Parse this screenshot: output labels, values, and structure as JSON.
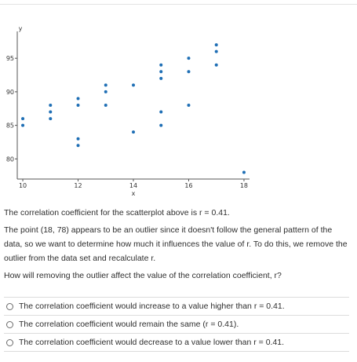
{
  "chart_data": {
    "type": "scatter",
    "xlabel": "x",
    "ylabel": "y",
    "xlim": [
      9.8,
      18.2
    ],
    "ylim": [
      77,
      99
    ],
    "xticks": [
      10,
      12,
      14,
      16,
      18
    ],
    "yticks": [
      80,
      85,
      90,
      95
    ],
    "point_color": "#1f6fb5",
    "points": [
      {
        "x": 10,
        "y": 86
      },
      {
        "x": 10,
        "y": 85
      },
      {
        "x": 11,
        "y": 88
      },
      {
        "x": 11,
        "y": 87
      },
      {
        "x": 11,
        "y": 86
      },
      {
        "x": 12,
        "y": 89
      },
      {
        "x": 12,
        "y": 88
      },
      {
        "x": 12,
        "y": 83
      },
      {
        "x": 12,
        "y": 82
      },
      {
        "x": 13,
        "y": 91
      },
      {
        "x": 13,
        "y": 90
      },
      {
        "x": 13,
        "y": 88
      },
      {
        "x": 14,
        "y": 91
      },
      {
        "x": 14,
        "y": 84
      },
      {
        "x": 15,
        "y": 94
      },
      {
        "x": 15,
        "y": 93
      },
      {
        "x": 15,
        "y": 92
      },
      {
        "x": 15,
        "y": 87
      },
      {
        "x": 15,
        "y": 85
      },
      {
        "x": 16,
        "y": 95
      },
      {
        "x": 16,
        "y": 93
      },
      {
        "x": 16,
        "y": 88
      },
      {
        "x": 17,
        "y": 97
      },
      {
        "x": 17,
        "y": 96
      },
      {
        "x": 17,
        "y": 94
      },
      {
        "x": 18,
        "y": 78
      }
    ]
  },
  "text": {
    "statement": "The correlation coefficient for the scatterplot above is r = 0.41.",
    "explanation": "The point (18, 78) appears to be an outlier since it doesn't follow the general pattern of the data, so we want to determine how much it influences the value of r. To do this, we remove the outlier from the data set and recalculate r.",
    "question": "How will removing the outlier affect the value of the correlation coefficient, r?"
  },
  "options": [
    "The correlation coefficient would increase to a value higher than r = 0.41.",
    "The correlation coefficient would remain the same (r = 0.41).",
    "The correlation coefficient would decrease to a value lower than r = 0.41."
  ]
}
